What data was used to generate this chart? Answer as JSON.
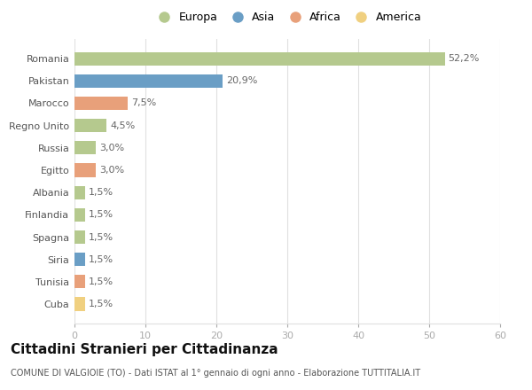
{
  "categories": [
    "Romania",
    "Pakistan",
    "Marocco",
    "Regno Unito",
    "Russia",
    "Egitto",
    "Albania",
    "Finlandia",
    "Spagna",
    "Siria",
    "Tunisia",
    "Cuba"
  ],
  "values": [
    52.2,
    20.9,
    7.5,
    4.5,
    3.0,
    3.0,
    1.5,
    1.5,
    1.5,
    1.5,
    1.5,
    1.5
  ],
  "labels": [
    "52,2%",
    "20,9%",
    "7,5%",
    "4,5%",
    "3,0%",
    "3,0%",
    "1,5%",
    "1,5%",
    "1,5%",
    "1,5%",
    "1,5%",
    "1,5%"
  ],
  "bar_colors": [
    "#b5c98e",
    "#6a9ec5",
    "#e8a07a",
    "#b5c98e",
    "#b5c98e",
    "#e8a07a",
    "#b5c98e",
    "#b5c98e",
    "#b5c98e",
    "#6a9ec5",
    "#e8a07a",
    "#f0d080"
  ],
  "legend_labels": [
    "Europa",
    "Asia",
    "Africa",
    "America"
  ],
  "legend_colors": [
    "#b5c98e",
    "#6a9ec5",
    "#e8a07a",
    "#f0d080"
  ],
  "title": "Cittadini Stranieri per Cittadinanza",
  "subtitle": "COMUNE DI VALGIOIE (TO) - Dati ISTAT al 1° gennaio di ogni anno - Elaborazione TUTTITALIA.IT",
  "xlim": [
    0,
    60
  ],
  "xticks": [
    0,
    10,
    20,
    30,
    40,
    50,
    60
  ],
  "background_color": "#ffffff",
  "grid_color": "#e0e0e0",
  "label_fontsize": 8,
  "tick_fontsize": 8,
  "title_fontsize": 11,
  "subtitle_fontsize": 7
}
